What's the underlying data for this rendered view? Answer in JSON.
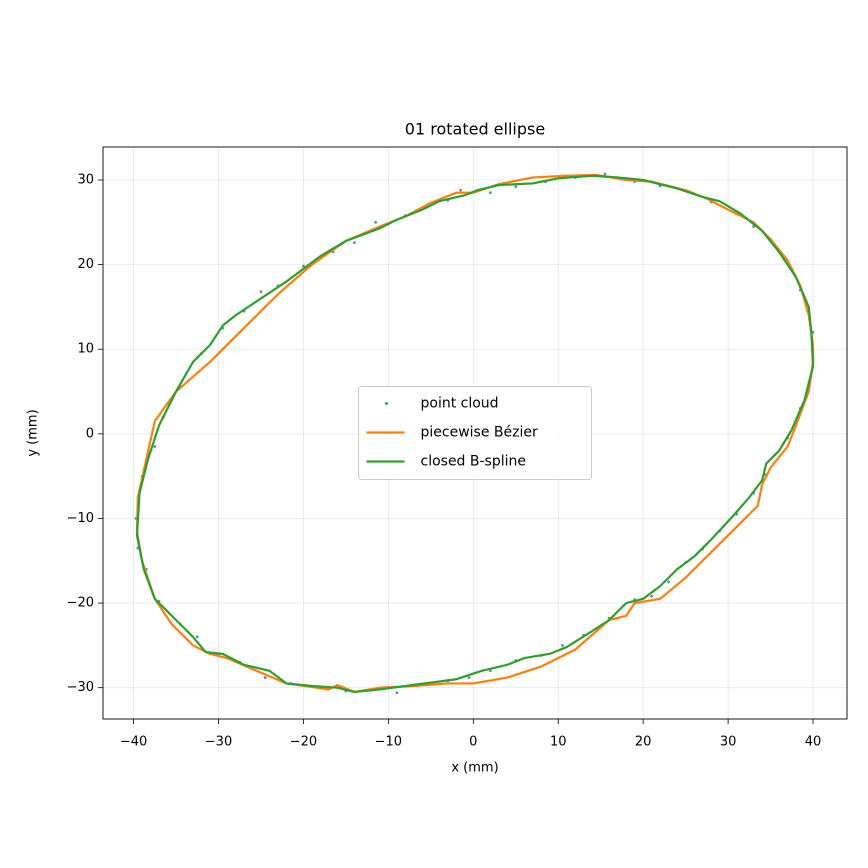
{
  "chart_data": {
    "type": "line",
    "title": "01 rotated ellipse",
    "x_label": "x (mm)",
    "y_label": "y (mm)",
    "xlim": [
      -43.6,
      44.0
    ],
    "ylim": [
      -33.7,
      33.9
    ],
    "xticks": [
      {
        "value": -40,
        "label": "−40"
      },
      {
        "value": -30,
        "label": "−30"
      },
      {
        "value": -20,
        "label": "−20"
      },
      {
        "value": -10,
        "label": "−10"
      },
      0,
      10,
      20,
      30,
      40
    ],
    "yticks": [
      {
        "value": -30,
        "label": "−30"
      },
      {
        "value": -20,
        "label": "−20"
      },
      {
        "value": -10,
        "label": "−10"
      },
      0,
      10,
      20,
      30
    ],
    "grid": true,
    "legend": "center",
    "series": [
      {
        "name": "point cloud",
        "type": "scatter",
        "color": "#1f77b4",
        "x": [
          40,
          39.6,
          38.5,
          37.5,
          35,
          33,
          31,
          28,
          25.5,
          22,
          19,
          15.5,
          12,
          8.5,
          5,
          2,
          -1.5,
          -3,
          -5.5,
          -8,
          -11.5,
          -14,
          -16.5,
          -20,
          -23,
          -25,
          -27,
          -29.5,
          -32,
          -34.5,
          -36.5,
          -37.5,
          -39,
          -39.7,
          -39.5,
          -38.5,
          -37,
          -34.5,
          -32.5,
          -30,
          -27.5,
          -24.5,
          -21.5,
          -18,
          -15,
          -12,
          -9,
          -6,
          -3,
          -0.5,
          2,
          5,
          8,
          10.5,
          13,
          16,
          19,
          21,
          23,
          25,
          27,
          29,
          31,
          33,
          34.3,
          35.5,
          37,
          38.5,
          39.5,
          40
        ],
        "y": [
          12,
          13.5,
          17,
          19.5,
          23,
          24.5,
          26,
          27.4,
          28.6,
          29.3,
          29.8,
          30.7,
          30.3,
          29.8,
          29.2,
          28.5,
          28.8,
          27.6,
          26.8,
          25.8,
          25,
          22.6,
          21.5,
          19.8,
          17.5,
          16.8,
          14.5,
          12.5,
          9.5,
          5.5,
          2,
          -1.5,
          -5,
          -10,
          -13.5,
          -16,
          -19.8,
          -22.5,
          -24,
          -26.2,
          -27,
          -28.8,
          -29.5,
          -30,
          -30.4,
          -30.3,
          -30.6,
          -29.7,
          -29.2,
          -28.8,
          -28,
          -26.8,
          -26.2,
          -25,
          -23.8,
          -21.8,
          -19.6,
          -19.2,
          -17.5,
          -15.2,
          -13.6,
          -11.5,
          -9.5,
          -7,
          -4.8,
          -2.5,
          -0.5,
          3,
          5.5,
          9
        ]
      },
      {
        "name": "piecewise Bézier",
        "type": "line",
        "color": "#ff7f0e",
        "x": [
          40,
          40,
          39.5,
          38.5,
          37,
          35,
          33,
          30,
          27.5,
          25,
          21,
          18,
          14.5,
          11,
          7,
          3,
          0,
          -2,
          -5,
          -8,
          -11,
          -15,
          -19,
          -23,
          -27,
          -31,
          -35,
          -37.5,
          -38.5,
          -39.5,
          -39.6,
          -39,
          -37.5,
          -35.5,
          -33,
          -31,
          -29,
          -26,
          -22,
          -17,
          -16,
          -14,
          -11,
          -7,
          -3,
          0,
          4,
          8,
          12,
          16,
          18,
          19,
          22,
          25,
          28,
          31,
          33.5,
          34,
          35,
          37,
          38,
          39.5,
          40
        ],
        "y": [
          8.5,
          10.5,
          14,
          17.5,
          20.5,
          23,
          25,
          26.5,
          27.8,
          28.8,
          29.8,
          30,
          30.6,
          30.5,
          30.3,
          29.5,
          28.5,
          28.5,
          27.3,
          25.7,
          24.5,
          22.8,
          20,
          16.5,
          12.5,
          8.5,
          5,
          1.5,
          -3,
          -7.5,
          -11.5,
          -15,
          -19.5,
          -22.5,
          -25,
          -26,
          -26.5,
          -27.8,
          -29.5,
          -30.2,
          -29.7,
          -30.5,
          -30,
          -29.8,
          -29.5,
          -29.5,
          -28.8,
          -27.5,
          -25.5,
          -22,
          -21.5,
          -20,
          -19.5,
          -17,
          -14,
          -11,
          -8.5,
          -6,
          -4,
          -1.5,
          1,
          5,
          8.5
        ]
      },
      {
        "name": "closed B-spline",
        "type": "line",
        "color": "#2ca02c",
        "x": [
          40,
          39.8,
          39.5,
          38,
          36,
          34,
          31.5,
          29,
          27,
          24,
          20,
          17,
          14,
          10,
          7,
          3,
          0.5,
          -1,
          -4,
          -6,
          -9,
          -11,
          -15,
          -18,
          -22,
          -25,
          -28,
          -29.5,
          -31,
          -33,
          -35,
          -37,
          -38.3,
          -39.3,
          -39.6,
          -38.8,
          -37.5,
          -35,
          -33,
          -31.5,
          -29.5,
          -27,
          -24,
          -22,
          -19,
          -16,
          -14,
          -11,
          -8,
          -5,
          -2,
          1,
          4,
          6,
          9,
          11,
          14,
          16,
          18,
          20,
          22,
          24,
          26,
          28,
          30.5,
          32.5,
          34,
          34.5,
          36,
          37.5,
          39,
          40
        ],
        "y": [
          8,
          12,
          15,
          18.5,
          21.5,
          24,
          26,
          27.5,
          28,
          29,
          30,
          30.3,
          30.5,
          30.2,
          29.6,
          29.4,
          28.8,
          28.2,
          27.5,
          26.5,
          25.3,
          24.3,
          22.8,
          21,
          18,
          16,
          14,
          12.8,
          10.5,
          8.5,
          5,
          1,
          -3,
          -7,
          -12,
          -16,
          -19.5,
          -22,
          -24,
          -25.8,
          -26,
          -27.3,
          -28,
          -29.5,
          -29.8,
          -30,
          -30.5,
          -30.2,
          -29.8,
          -29.4,
          -29,
          -28,
          -27.3,
          -26.5,
          -26,
          -25.2,
          -23.3,
          -22,
          -20,
          -19.5,
          -18,
          -16,
          -14.5,
          -12.5,
          -9.8,
          -7.5,
          -5.5,
          -3.5,
          -2,
          0.5,
          4,
          8
        ]
      }
    ]
  }
}
